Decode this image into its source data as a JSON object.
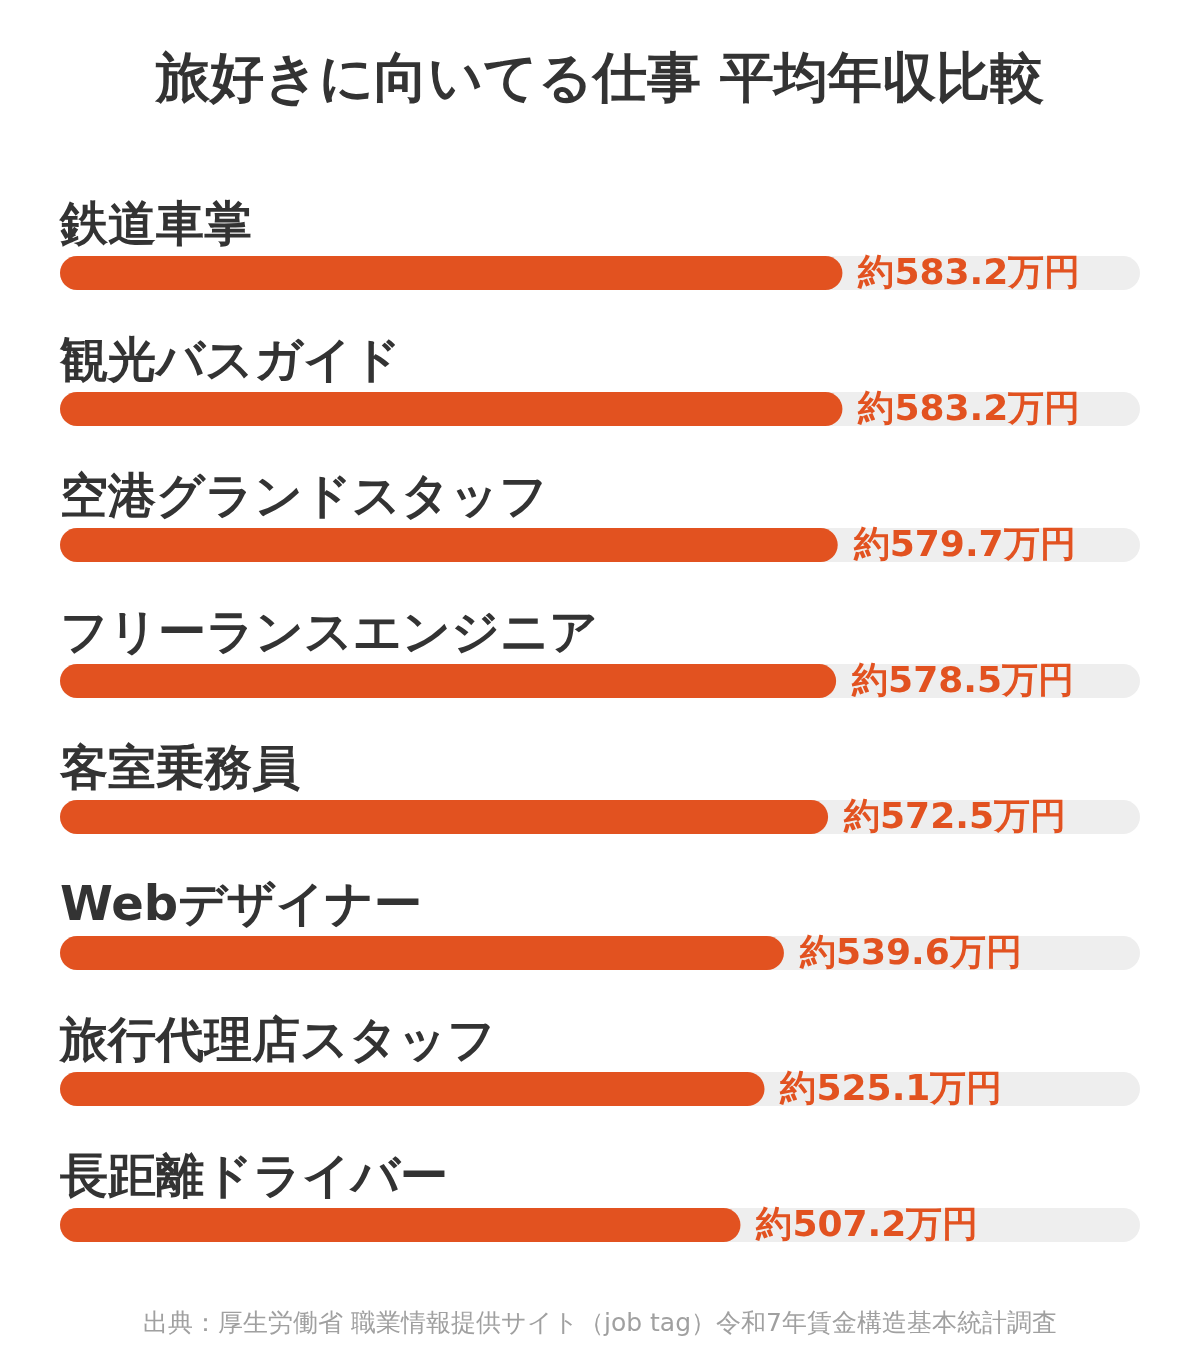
{
  "chart_data": {
    "type": "bar",
    "orientation": "horizontal",
    "title": "旅好きに向いてる仕事 平均年収比較",
    "categories": [
      "鉄道車掌",
      "観光バスガイド",
      "空港グランドスタッフ",
      "フリーランスエンジニア",
      "客室乗務員",
      "Webデザイナー",
      "旅行代理店スタッフ",
      "長距離ドライバー"
    ],
    "values": [
      583.2,
      583.2,
      579.7,
      578.5,
      572.5,
      539.6,
      525.1,
      507.2
    ],
    "value_labels": [
      "約583.2万円",
      "約583.2万円",
      "約579.7万円",
      "約578.5万円",
      "約572.5万円",
      "約539.6万円",
      "約525.1万円",
      "約507.2万円"
    ],
    "color": "#e25220",
    "xlim": [
      0,
      805
    ],
    "annotations": [
      "出典：厚生労働省 職業情報提供サイト（job tag）令和7年賃金構造基本統計調査"
    ]
  }
}
